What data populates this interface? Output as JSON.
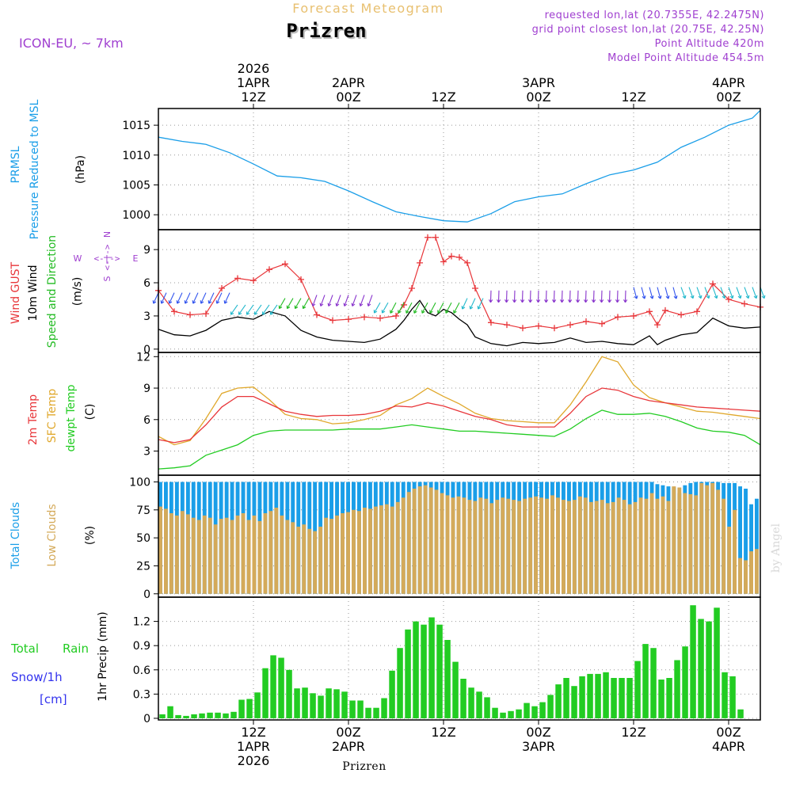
{
  "header": {
    "top_title": "Forecast Meteogram",
    "location": "Prizren",
    "model": "ICON-EU, ~ 7km",
    "requested": "requested lon,lat (20.7355E, 42.2475N)",
    "grid_point": "grid point closest lon,lat (20.75E, 42.25N)",
    "point_altitude": "Point Altitude 420m",
    "model_altitude": "Model Point Altitude 454.5m",
    "footer_location": "Prizren",
    "credit": "by Angel"
  },
  "colors": {
    "pressure": "#1a9ee8",
    "gust": "#e8363a",
    "wind": "#000000",
    "arrows": "#22bb22",
    "temp2m": "#e8363a",
    "sfc": "#e0a82c",
    "dewpt": "#22cc22",
    "total_clouds": "#1a9ee8",
    "low_clouds": "#d4aa5a",
    "rain": "#22cc22",
    "snow": "#3333ee",
    "purple": "#a040d0"
  },
  "time_axis": {
    "top_labels": [
      {
        "hour": 12,
        "lines": [
          "2026",
          "1APR",
          "12Z"
        ]
      },
      {
        "hour": 24,
        "lines": [
          "2APR",
          "00Z"
        ]
      },
      {
        "hour": 36,
        "lines": [
          "12Z"
        ]
      },
      {
        "hour": 48,
        "lines": [
          "3APR",
          "00Z"
        ]
      },
      {
        "hour": 60,
        "lines": [
          "12Z"
        ]
      },
      {
        "hour": 72,
        "lines": [
          "4APR",
          "00Z"
        ]
      }
    ],
    "bottom_labels": [
      {
        "hour": 12,
        "lines": [
          "12Z",
          "1APR",
          "2026"
        ]
      },
      {
        "hour": 24,
        "lines": [
          "00Z",
          "2APR"
        ]
      },
      {
        "hour": 36,
        "lines": [
          "12Z"
        ]
      },
      {
        "hour": 48,
        "lines": [
          "00Z",
          "3APR"
        ]
      },
      {
        "hour": 60,
        "lines": [
          "12Z"
        ]
      },
      {
        "hour": 72,
        "lines": [
          "00Z",
          "4APR"
        ]
      }
    ]
  },
  "panel_labels": {
    "pressure": [
      "PRMSL",
      "Pressure Reduced to MSL"
    ],
    "pressure_unit": "(hPa)",
    "wind_gust": "Wind GUST",
    "wind_10m": "10m Wind",
    "wind_dir": "Speed and Direction",
    "wind_unit": "(m/s)",
    "compass": {
      "n": "N",
      "s": "S",
      "w": "W",
      "e": "E",
      "arrow": "<-|->"
    },
    "temp_2m": "2m Temp",
    "temp_sfc": "SFC Temp",
    "temp_dew": "dewpt Temp",
    "temp_unit": "(C)",
    "clouds_total": "Total Clouds",
    "clouds_low": "Low Clouds",
    "clouds_unit": "(%)",
    "precip_total": "Total",
    "precip_rain": "Rain",
    "precip_snow": "Snow/1h",
    "precip_cm": "[cm]",
    "precip_unit": "1hr Precip (mm)"
  },
  "chart_data": [
    {
      "type": "line",
      "title": "PRMSL Pressure Reduced to MSL",
      "ylabel": "(hPa)",
      "ylim": [
        997.5,
        1017.8
      ],
      "yticks": [
        1000,
        1005,
        1010,
        1015
      ],
      "x": [
        0,
        3,
        6,
        9,
        12,
        15,
        18,
        21,
        24,
        27,
        30,
        33,
        36,
        39,
        42,
        45,
        48,
        51,
        54,
        57,
        60,
        63,
        66,
        69,
        72,
        75,
        76
      ],
      "series": [
        {
          "name": "PRMSL",
          "values": [
            1013.0,
            1012.3,
            1011.8,
            1010.4,
            1008.5,
            1006.5,
            1006.2,
            1005.6,
            1004.0,
            1002.2,
            1000.5,
            999.7,
            999.0,
            998.8,
            1000.2,
            1002.2,
            1003.0,
            1003.5,
            1005.2,
            1006.7,
            1007.5,
            1008.8,
            1011.3,
            1013.0,
            1015.0,
            1016.2,
            1017.5
          ]
        }
      ]
    },
    {
      "type": "line",
      "title": "Wind GUST / 10m Wind Speed and Direction",
      "ylabel": "(m/s)",
      "ylim": [
        -0.3,
        10.8
      ],
      "yticks": [
        0,
        3,
        6,
        9
      ],
      "x": [
        0,
        2,
        4,
        6,
        8,
        10,
        12,
        14,
        16,
        18,
        20,
        22,
        24,
        26,
        28,
        30,
        31,
        32,
        33,
        34,
        35,
        36,
        37,
        38,
        39,
        40,
        42,
        44,
        46,
        48,
        50,
        52,
        54,
        56,
        58,
        60,
        62,
        63,
        64,
        66,
        68,
        70,
        72,
        74,
        76
      ],
      "series": [
        {
          "name": "Wind GUST",
          "values": [
            5.3,
            3.4,
            3.1,
            3.2,
            5.5,
            6.4,
            6.2,
            7.2,
            7.7,
            6.3,
            3.1,
            2.6,
            2.7,
            2.9,
            2.8,
            3.0,
            4.0,
            5.5,
            7.8,
            10.1,
            10.1,
            7.9,
            8.4,
            8.3,
            7.8,
            5.5,
            2.4,
            2.2,
            1.9,
            2.1,
            1.9,
            2.2,
            2.5,
            2.3,
            2.9,
            3.0,
            3.4,
            2.2,
            3.5,
            3.1,
            3.4,
            5.9,
            4.5,
            4.1,
            3.8
          ]
        },
        {
          "name": "10m Wind",
          "values": [
            1.8,
            1.3,
            1.2,
            1.7,
            2.6,
            2.9,
            2.7,
            3.4,
            3.0,
            1.7,
            1.1,
            0.8,
            0.7,
            0.6,
            0.9,
            1.8,
            2.6,
            3.6,
            4.4,
            3.3,
            3.0,
            3.6,
            3.3,
            2.7,
            2.2,
            1.1,
            0.5,
            0.3,
            0.6,
            0.5,
            0.6,
            1.0,
            0.6,
            0.7,
            0.5,
            0.4,
            1.2,
            0.4,
            0.8,
            1.3,
            1.5,
            2.8,
            2.1,
            1.9,
            2.0
          ]
        }
      ]
    },
    {
      "type": "line",
      "title": "2m Temp / SFC Temp / dewpt Temp",
      "ylabel": "(C)",
      "ylim": [
        0.7,
        12.4
      ],
      "yticks": [
        3,
        6,
        9,
        12
      ],
      "x": [
        0,
        2,
        4,
        6,
        8,
        10,
        12,
        14,
        16,
        18,
        20,
        22,
        24,
        26,
        28,
        30,
        32,
        34,
        36,
        38,
        40,
        42,
        44,
        46,
        48,
        50,
        52,
        54,
        56,
        58,
        60,
        62,
        64,
        66,
        68,
        70,
        72,
        74,
        76
      ],
      "series": [
        {
          "name": "2m Temp",
          "values": [
            4.1,
            3.8,
            4.1,
            5.5,
            7.2,
            8.2,
            8.2,
            7.5,
            6.8,
            6.5,
            6.3,
            6.4,
            6.4,
            6.5,
            6.8,
            7.3,
            7.2,
            7.6,
            7.3,
            6.8,
            6.3,
            6.0,
            5.5,
            5.3,
            5.3,
            5.3,
            6.6,
            8.2,
            9.0,
            8.8,
            8.2,
            7.8,
            7.6,
            7.4,
            7.2,
            7.1,
            7.0,
            6.9,
            6.8
          ]
        },
        {
          "name": "SFC Temp",
          "values": [
            4.4,
            3.6,
            4.0,
            6.1,
            8.5,
            9.0,
            9.1,
            7.9,
            6.5,
            6.1,
            6.0,
            5.6,
            5.7,
            6.0,
            6.4,
            7.4,
            8.0,
            9.0,
            8.2,
            7.5,
            6.6,
            6.1,
            5.9,
            5.8,
            5.7,
            5.7,
            7.4,
            9.6,
            12.0,
            11.5,
            9.3,
            8.1,
            7.6,
            7.2,
            6.8,
            6.7,
            6.5,
            6.3,
            6.1
          ]
        },
        {
          "name": "dewpt Temp",
          "values": [
            1.3,
            1.4,
            1.6,
            2.6,
            3.1,
            3.6,
            4.5,
            4.9,
            5.0,
            5.0,
            5.0,
            5.0,
            5.1,
            5.1,
            5.1,
            5.3,
            5.5,
            5.3,
            5.1,
            4.9,
            4.9,
            4.8,
            4.7,
            4.6,
            4.5,
            4.4,
            5.1,
            6.1,
            6.9,
            6.5,
            6.5,
            6.6,
            6.3,
            5.8,
            5.2,
            4.9,
            4.8,
            4.5,
            3.6
          ]
        }
      ]
    },
    {
      "type": "bar",
      "title": "Total Clouds / Low Clouds",
      "ylabel": "(%)",
      "ylim": [
        -3,
        106
      ],
      "yticks": [
        0,
        25,
        50,
        75,
        100
      ],
      "series": [
        {
          "name": "Total Clouds",
          "values": [
            100,
            100,
            100,
            100,
            100,
            100,
            100,
            100,
            100,
            100,
            100,
            100,
            100,
            100,
            100,
            100,
            100,
            100,
            100,
            100,
            100,
            100,
            100,
            100,
            100,
            100,
            100,
            100,
            100,
            100,
            100,
            100,
            100,
            100,
            100,
            100,
            100,
            100,
            100,
            100,
            100,
            100,
            100,
            100,
            100,
            100,
            100,
            100,
            100,
            100,
            100,
            100,
            100,
            100,
            100,
            100,
            100,
            100,
            100,
            100,
            100,
            100,
            100,
            100,
            100,
            100,
            100,
            100,
            100,
            100,
            100,
            100,
            100,
            100,
            100,
            100,
            100,
            100,
            100,
            100,
            100,
            100,
            100,
            100,
            100,
            100,
            100,
            100,
            100,
            100,
            98,
            97,
            96,
            95,
            90,
            97,
            99,
            100,
            100,
            100,
            100,
            100,
            99,
            99,
            99,
            96,
            94,
            80,
            85
          ]
        },
        {
          "name": "Low Clouds",
          "values": [
            78,
            76,
            72,
            70,
            74,
            71,
            68,
            66,
            70,
            68,
            62,
            67,
            68,
            66,
            70,
            72,
            66,
            70,
            65,
            72,
            74,
            77,
            70,
            66,
            64,
            60,
            62,
            58,
            56,
            60,
            68,
            67,
            70,
            72,
            73,
            75,
            74,
            77,
            76,
            78,
            79,
            80,
            78,
            82,
            86,
            91,
            94,
            96,
            97,
            95,
            93,
            90,
            88,
            86,
            87,
            86,
            84,
            83,
            86,
            85,
            81,
            84,
            86,
            85,
            84,
            83,
            85,
            86,
            87,
            86,
            85,
            88,
            86,
            84,
            83,
            84,
            87,
            86,
            82,
            83,
            84,
            81,
            82,
            86,
            84,
            80,
            82,
            86,
            85,
            90,
            85,
            87,
            83,
            96,
            95,
            90,
            89,
            88,
            99,
            97,
            99,
            93,
            85,
            60,
            75,
            32,
            30,
            38,
            40
          ]
        }
      ]
    },
    {
      "type": "bar",
      "title": "Total Rain / Snow 1h",
      "ylabel": "1hr Precip (mm)",
      "ylim": [
        -0.02,
        1.5
      ],
      "yticks": [
        0,
        0.3,
        0.6,
        0.9,
        1.2
      ],
      "values": [
        0.05,
        0.15,
        0.04,
        0.03,
        0.05,
        0.06,
        0.07,
        0.07,
        0.06,
        0.08,
        0.23,
        0.24,
        0.32,
        0.62,
        0.78,
        0.75,
        0.6,
        0.37,
        0.38,
        0.31,
        0.28,
        0.37,
        0.36,
        0.33,
        0.22,
        0.22,
        0.13,
        0.13,
        0.25,
        0.59,
        0.87,
        1.1,
        1.2,
        1.16,
        1.25,
        1.16,
        0.97,
        0.7,
        0.49,
        0.38,
        0.33,
        0.26,
        0.13,
        0.07,
        0.09,
        0.11,
        0.19,
        0.15,
        0.2,
        0.29,
        0.42,
        0.5,
        0.4,
        0.52,
        0.55,
        0.55,
        0.57,
        0.5,
        0.5,
        0.5,
        0.71,
        0.92,
        0.87,
        0.48,
        0.5,
        0.72,
        0.89,
        1.4,
        1.23,
        1.2,
        1.37,
        0.57,
        0.52,
        0.11
      ]
    }
  ]
}
